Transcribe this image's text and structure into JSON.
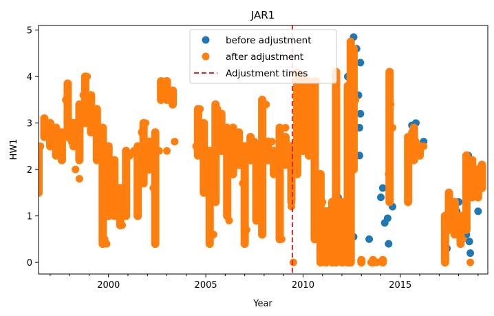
{
  "chart_data": {
    "type": "scatter",
    "title": "JAR1",
    "xlabel": "Year",
    "ylabel": "HW1",
    "xlim": [
      1996.4,
      2019.5
    ],
    "ylim": [
      -0.25,
      5.1
    ],
    "x_ticks": [
      2000,
      2005,
      2010,
      2015
    ],
    "y_ticks": [
      0,
      1,
      2,
      3,
      4,
      5
    ],
    "legend_position": "top-center",
    "grid": false,
    "series": [
      {
        "name": "before adjustment",
        "kind": "scatter",
        "color": "#1f77b4",
        "points": [
          [
            2012.3,
            4.0
          ],
          [
            2012.45,
            4.5
          ],
          [
            2012.6,
            4.85
          ],
          [
            2012.75,
            4.6
          ],
          [
            2012.85,
            3.6
          ],
          [
            2012.9,
            2.9
          ],
          [
            2012.9,
            2.3
          ],
          [
            2012.95,
            3.2
          ],
          [
            2012.95,
            4.3
          ],
          [
            2011.6,
            1.0
          ],
          [
            2011.8,
            1.4
          ],
          [
            2012.6,
            0.55
          ],
          [
            2013.4,
            0.5
          ],
          [
            2014.0,
            1.4
          ],
          [
            2014.1,
            1.6
          ],
          [
            2014.2,
            0.85
          ],
          [
            2014.35,
            0.95
          ],
          [
            2014.4,
            0.4
          ],
          [
            2014.6,
            1.2
          ],
          [
            2015.6,
            2.95
          ],
          [
            2015.7,
            2.8
          ],
          [
            2015.8,
            3.0
          ],
          [
            2016.0,
            2.5
          ],
          [
            2016.2,
            2.6
          ],
          [
            2017.4,
            0.3
          ],
          [
            2017.6,
            1.0
          ],
          [
            2017.9,
            1.1
          ],
          [
            2018.0,
            1.3
          ],
          [
            2018.2,
            0.9
          ],
          [
            2018.4,
            0.6
          ],
          [
            2018.5,
            2.3
          ],
          [
            2018.55,
            0.45
          ],
          [
            2018.6,
            0.2
          ],
          [
            2018.8,
            1.5
          ],
          [
            2019.0,
            1.1
          ],
          [
            2019.1,
            1.6
          ],
          [
            2019.2,
            2.0
          ]
        ]
      },
      {
        "name": "after adjustment",
        "kind": "scatter",
        "color": "#ff7f0e",
        "points": [
          [
            1996.4,
            1.6
          ],
          [
            1996.5,
            2.5
          ],
          [
            1996.7,
            3.1
          ],
          [
            1997.0,
            3.0
          ],
          [
            1997.2,
            2.8
          ],
          [
            1997.4,
            2.5
          ],
          [
            1997.6,
            2.3
          ],
          [
            1997.8,
            3.5
          ],
          [
            1997.9,
            3.8
          ],
          [
            1998.1,
            2.6
          ],
          [
            1998.3,
            2.0
          ],
          [
            1998.5,
            1.8
          ],
          [
            1998.7,
            3.6
          ],
          [
            1998.9,
            4.0
          ],
          [
            1999.1,
            3.4
          ],
          [
            1999.3,
            3.0
          ],
          [
            1999.5,
            2.8
          ],
          [
            1999.6,
            2.2
          ],
          [
            1999.8,
            0.5
          ],
          [
            1999.9,
            0.4
          ],
          [
            2000.1,
            2.0
          ],
          [
            2000.3,
            1.3
          ],
          [
            2000.5,
            1.0
          ],
          [
            2000.7,
            0.8
          ],
          [
            2000.9,
            1.5
          ],
          [
            2001.1,
            2.3
          ],
          [
            2001.3,
            2.4
          ],
          [
            2001.5,
            1.0
          ],
          [
            2001.7,
            2.8
          ],
          [
            2001.9,
            3.0
          ],
          [
            2002.1,
            2.2
          ],
          [
            2002.3,
            1.6
          ],
          [
            2002.4,
            0.4
          ],
          [
            2002.6,
            2.4
          ],
          [
            2002.7,
            3.9
          ],
          [
            2002.9,
            3.9
          ],
          [
            2003.0,
            2.4
          ],
          [
            2003.1,
            3.7
          ],
          [
            2003.3,
            3.7
          ],
          [
            2003.4,
            2.6
          ],
          [
            2004.5,
            2.5
          ],
          [
            2004.7,
            3.3
          ],
          [
            2004.9,
            2.9
          ],
          [
            2005.0,
            1.5
          ],
          [
            2005.2,
            1.0
          ],
          [
            2005.4,
            0.6
          ],
          [
            2005.6,
            3.3
          ],
          [
            2005.7,
            3.0
          ],
          [
            2005.9,
            2.5
          ],
          [
            2006.1,
            2.0
          ],
          [
            2006.2,
            0.9
          ],
          [
            2006.4,
            2.9
          ],
          [
            2006.5,
            2.4
          ],
          [
            2006.7,
            2.6
          ],
          [
            2006.9,
            1.7
          ],
          [
            2007.1,
            0.7
          ],
          [
            2007.3,
            2.6
          ],
          [
            2007.5,
            2.6
          ],
          [
            2007.7,
            1.2
          ],
          [
            2007.9,
            0.8
          ],
          [
            2008.1,
            3.4
          ],
          [
            2008.4,
            2.6
          ],
          [
            2008.6,
            2.4
          ],
          [
            2008.8,
            1.4
          ],
          [
            2008.9,
            0.5
          ],
          [
            2009.1,
            2.9
          ],
          [
            2009.3,
            2.4
          ],
          [
            2009.4,
            1.2
          ],
          [
            2009.5,
            0.0
          ],
          [
            2009.6,
            1.9
          ],
          [
            2009.7,
            4.1
          ],
          [
            2009.9,
            3.3
          ],
          [
            2010.1,
            4.0
          ],
          [
            2010.3,
            3.6
          ],
          [
            2010.4,
            2.6
          ],
          [
            2010.6,
            3.8
          ],
          [
            2010.7,
            3.9
          ],
          [
            2010.8,
            0.7
          ],
          [
            2010.9,
            0.2
          ],
          [
            2011.0,
            1.3
          ],
          [
            2011.1,
            0.0
          ],
          [
            2011.2,
            0.9
          ],
          [
            2011.3,
            0.4
          ],
          [
            2011.5,
            0.3
          ],
          [
            2011.7,
            4.1
          ],
          [
            2011.9,
            0.6
          ],
          [
            2012.1,
            0.0
          ],
          [
            2012.3,
            2.9
          ],
          [
            2012.45,
            4.7
          ],
          [
            2012.6,
            4.0
          ],
          [
            2012.7,
            3.5
          ],
          [
            2013.0,
            0.0
          ],
          [
            2013.5,
            0.0
          ],
          [
            2013.8,
            0.0
          ],
          [
            2014.1,
            0.0
          ],
          [
            2014.4,
            1.9
          ],
          [
            2014.45,
            4.1
          ],
          [
            2014.5,
            3.4
          ],
          [
            2014.6,
            2.9
          ],
          [
            2015.4,
            2.4
          ],
          [
            2015.6,
            2.8
          ],
          [
            2015.8,
            2.6
          ],
          [
            2016.0,
            2.4
          ],
          [
            2016.2,
            2.5
          ],
          [
            2017.3,
            0.1
          ],
          [
            2017.4,
            0.8
          ],
          [
            2017.5,
            1.4
          ],
          [
            2017.7,
            1.2
          ],
          [
            2018.0,
            0.9
          ],
          [
            2018.2,
            0.5
          ],
          [
            2018.4,
            1.0
          ],
          [
            2018.5,
            2.1
          ],
          [
            2018.6,
            0.0
          ],
          [
            2018.7,
            1.8
          ],
          [
            2018.9,
            1.6
          ],
          [
            2019.1,
            1.9
          ]
        ],
        "bands": [
          [
            1996.4,
            1.5,
            2.5
          ],
          [
            1996.7,
            2.7,
            3.1
          ],
          [
            1997.0,
            2.5,
            3.0
          ],
          [
            1997.3,
            2.3,
            2.9
          ],
          [
            1997.6,
            2.2,
            2.8
          ],
          [
            1997.9,
            2.7,
            3.85
          ],
          [
            1998.2,
            2.5,
            3.0
          ],
          [
            1998.5,
            2.2,
            3.4
          ],
          [
            1998.8,
            3.0,
            4.0
          ],
          [
            1999.1,
            2.8,
            3.6
          ],
          [
            1999.4,
            2.2,
            3.3
          ],
          [
            1999.7,
            0.4,
            2.9
          ],
          [
            2000.0,
            1.0,
            2.5
          ],
          [
            2000.3,
            1.0,
            2.2
          ],
          [
            2000.6,
            0.8,
            1.6
          ],
          [
            2000.9,
            1.0,
            2.4
          ],
          [
            2001.5,
            1.0,
            2.5
          ],
          [
            2001.8,
            1.7,
            3.0
          ],
          [
            2002.1,
            2.0,
            2.6
          ],
          [
            2002.4,
            0.4,
            2.8
          ],
          [
            2002.7,
            3.5,
            3.9
          ],
          [
            2003.0,
            3.5,
            3.9
          ],
          [
            2003.3,
            3.4,
            3.7
          ],
          [
            2004.6,
            2.3,
            3.3
          ],
          [
            2004.9,
            1.5,
            3.0
          ],
          [
            2005.2,
            0.4,
            2.4
          ],
          [
            2005.5,
            1.3,
            3.4
          ],
          [
            2005.8,
            2.4,
            3.2
          ],
          [
            2006.1,
            1.0,
            2.9
          ],
          [
            2006.4,
            1.9,
            2.9
          ],
          [
            2006.7,
            2.1,
            2.8
          ],
          [
            2007.0,
            0.4,
            2.5
          ],
          [
            2007.3,
            2.2,
            2.7
          ],
          [
            2007.6,
            0.9,
            2.5
          ],
          [
            2007.9,
            0.6,
            3.5
          ],
          [
            2008.2,
            2.2,
            2.6
          ],
          [
            2008.5,
            1.9,
            2.4
          ],
          [
            2008.8,
            0.5,
            2.9
          ],
          [
            2009.1,
            2.1,
            2.7
          ],
          [
            2009.4,
            1.3,
            2.5
          ],
          [
            2009.7,
            1.9,
            4.1
          ],
          [
            2010.0,
            2.4,
            4.0
          ],
          [
            2010.3,
            2.3,
            3.9
          ],
          [
            2010.6,
            0.5,
            3.9
          ],
          [
            2010.9,
            0.0,
            1.9
          ],
          [
            2011.2,
            0.0,
            1.1
          ],
          [
            2011.5,
            0.0,
            1.3
          ],
          [
            2011.7,
            0.0,
            4.1
          ],
          [
            2012.0,
            0.0,
            1.3
          ],
          [
            2012.3,
            0.0,
            3.8
          ],
          [
            2012.45,
            0.0,
            4.75
          ],
          [
            2012.6,
            2.0,
            4.6
          ],
          [
            2013.0,
            0.0,
            0.05
          ],
          [
            2013.6,
            0.0,
            0.05
          ],
          [
            2014.1,
            0.0,
            0.05
          ],
          [
            2014.45,
            1.3,
            4.1
          ],
          [
            2015.4,
            1.3,
            2.7
          ],
          [
            2015.7,
            2.2,
            2.9
          ],
          [
            2016.0,
            2.3,
            2.5
          ],
          [
            2017.3,
            0.0,
            1.0
          ],
          [
            2017.5,
            0.7,
            1.5
          ],
          [
            2017.8,
            0.6,
            1.3
          ],
          [
            2018.1,
            0.4,
            1.0
          ],
          [
            2018.4,
            0.7,
            2.3
          ],
          [
            2018.7,
            1.4,
            2.2
          ],
          [
            2019.0,
            1.4,
            2.0
          ],
          [
            2019.2,
            1.6,
            2.1
          ]
        ]
      }
    ],
    "adjustment_times": [
      2009.45
    ],
    "legend": [
      {
        "label": "before adjustment",
        "marker": "circle",
        "color": "#1f77b4"
      },
      {
        "label": "after adjustment",
        "marker": "circle",
        "color": "#ff7f0e"
      },
      {
        "label": "Adjustment times",
        "marker": "dashed-line",
        "color": "#d62728"
      }
    ]
  }
}
